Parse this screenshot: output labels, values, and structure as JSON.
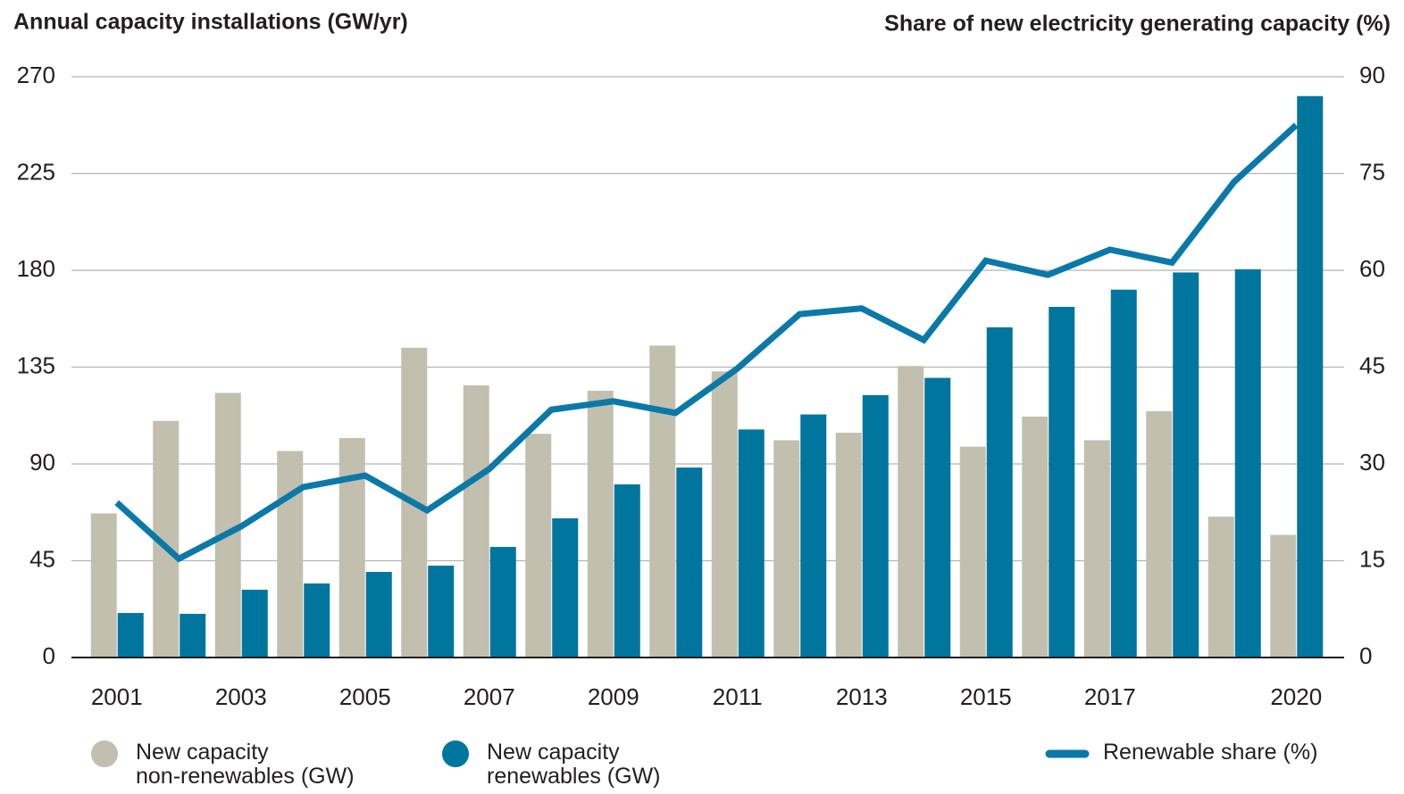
{
  "chart_data": {
    "type": "bar",
    "ylabel": "Annual capacity installations (GW/yr)",
    "y2label": "Share of new electricity generating capacity (%)",
    "categories": [
      "2001",
      null,
      "2003",
      null,
      "2005",
      null,
      "2007",
      null,
      "2009",
      null,
      "2011",
      null,
      "2013",
      null,
      "2015",
      null,
      "2017",
      null,
      null,
      "2020"
    ],
    "series": [
      {
        "name": "New capacity\nnon-renewables (GW)",
        "color": "#c2bfae",
        "values": [
          67,
          110,
          123,
          96,
          102,
          144,
          126.5,
          104,
          124,
          145,
          133,
          101,
          104.5,
          135.5,
          98,
          112,
          101,
          114.5,
          65.5,
          57
        ]
      },
      {
        "name": "New capacity\nrenewables (GW)",
        "color": "#00759e",
        "values": [
          20.7,
          20.3,
          31.5,
          34.4,
          39.8,
          42.7,
          51.4,
          64.7,
          80.5,
          88.3,
          106,
          113,
          122,
          130,
          153.5,
          163,
          171,
          179,
          180.5,
          261
        ]
      },
      {
        "name": "Renewable share (%)",
        "color": "#0b79a8",
        "type": "line",
        "axis": "y2",
        "values": [
          24,
          15.3,
          20.3,
          26.4,
          28.2,
          22.8,
          29.2,
          38.4,
          39.7,
          37.9,
          44.8,
          53.2,
          54.1,
          49.2,
          61.5,
          59.3,
          63.2,
          61.2,
          73.7,
          82.5
        ]
      }
    ],
    "ylim": [
      0,
      270
    ],
    "yticks": [
      0,
      45,
      90,
      135,
      180,
      225,
      270
    ],
    "y2lim": [
      0,
      90
    ],
    "y2ticks": [
      0,
      15,
      30,
      45,
      60,
      75,
      90
    ],
    "grid": true
  }
}
